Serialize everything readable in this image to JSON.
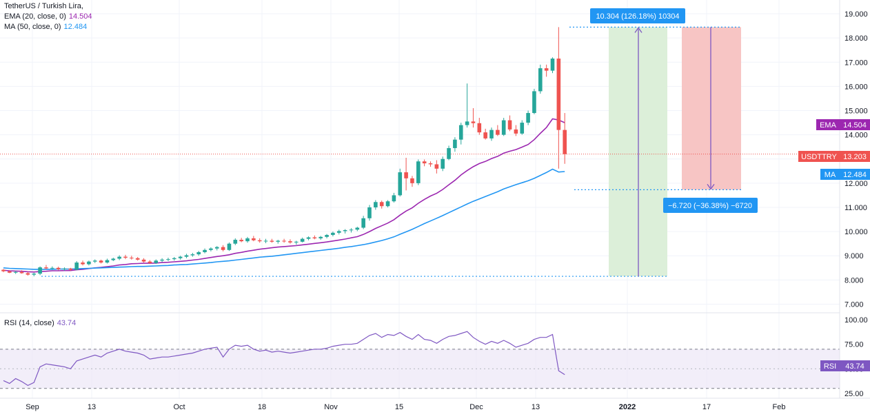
{
  "legend": {
    "title": "TetherUS / Turkish Lira,",
    "ema_label": "EMA (20, close, 0)",
    "ema_value": "14.504",
    "ma_label": "MA (50, close, 0)",
    "ma_value": "12.484",
    "rsi_label": "RSI (14, close)",
    "rsi_value": "43.74"
  },
  "tags": {
    "ema": {
      "label": "EMA",
      "value": "14.504"
    },
    "price": {
      "label": "USDTTRY",
      "value": "13.203"
    },
    "ma": {
      "label": "MA",
      "value": "12.484"
    },
    "rsi": {
      "label": "RSI",
      "value": "43.74"
    }
  },
  "colors": {
    "up": "#26a69a",
    "down": "#ef5350",
    "ema": "#9c27b0",
    "ma": "#2196f3",
    "rsi": "#7e57c2",
    "long_profit_zone": "#dcefd9",
    "short_loss_zone": "#f7c5c4",
    "range_box": "#2196f3"
  },
  "chart_data": [
    {
      "type": "candlestick",
      "title": "TetherUS / Turkish Lira,",
      "ylim": [
        6.7,
        19.4
      ],
      "y_ticks": [
        "7.000",
        "8.000",
        "9.000",
        "10.000",
        "11.000",
        "12.000",
        "13.000",
        "14.000",
        "15.000",
        "16.000",
        "17.000",
        "18.000",
        "19.000"
      ],
      "x_ticks": [
        "Sep",
        "13",
        "Oct",
        "18",
        "Nov",
        "15",
        "Dec",
        "13",
        "2022",
        "17",
        "Feb"
      ],
      "current_price": 13.203,
      "candles": [
        [
          8.42,
          8.45,
          8.32,
          8.36
        ],
        [
          8.36,
          8.4,
          8.28,
          8.3
        ],
        [
          8.3,
          8.38,
          8.25,
          8.33
        ],
        [
          8.33,
          8.4,
          8.26,
          8.28
        ],
        [
          8.28,
          8.33,
          8.18,
          8.22
        ],
        [
          8.22,
          8.3,
          8.15,
          8.26
        ],
        [
          8.26,
          8.56,
          8.2,
          8.52
        ],
        [
          8.52,
          8.62,
          8.44,
          8.48
        ],
        [
          8.48,
          8.56,
          8.42,
          8.5
        ],
        [
          8.5,
          8.55,
          8.4,
          8.44
        ],
        [
          8.44,
          8.52,
          8.38,
          8.47
        ],
        [
          8.47,
          8.5,
          8.38,
          8.42
        ],
        [
          8.42,
          8.78,
          8.4,
          8.72
        ],
        [
          8.72,
          8.8,
          8.6,
          8.65
        ],
        [
          8.65,
          8.8,
          8.6,
          8.76
        ],
        [
          8.76,
          8.85,
          8.7,
          8.8
        ],
        [
          8.8,
          8.84,
          8.68,
          8.72
        ],
        [
          8.72,
          8.88,
          8.68,
          8.82
        ],
        [
          8.82,
          8.92,
          8.78,
          8.88
        ],
        [
          8.88,
          9.02,
          8.82,
          8.96
        ],
        [
          8.96,
          9.04,
          8.86,
          8.92
        ],
        [
          8.92,
          9.0,
          8.84,
          8.9
        ],
        [
          8.9,
          8.95,
          8.8,
          8.84
        ],
        [
          8.84,
          8.9,
          8.72,
          8.76
        ],
        [
          8.76,
          8.82,
          8.66,
          8.7
        ],
        [
          8.7,
          8.85,
          8.66,
          8.8
        ],
        [
          8.8,
          8.9,
          8.74,
          8.84
        ],
        [
          8.84,
          8.92,
          8.78,
          8.86
        ],
        [
          8.86,
          8.95,
          8.8,
          8.9
        ],
        [
          8.9,
          9.0,
          8.84,
          8.96
        ],
        [
          8.96,
          9.08,
          8.9,
          9.02
        ],
        [
          9.02,
          9.12,
          8.96,
          9.06
        ],
        [
          9.06,
          9.2,
          9.0,
          9.15
        ],
        [
          9.15,
          9.3,
          9.1,
          9.24
        ],
        [
          9.24,
          9.35,
          9.18,
          9.3
        ],
        [
          9.3,
          9.4,
          9.22,
          9.36
        ],
        [
          9.36,
          9.44,
          9.18,
          9.24
        ],
        [
          9.24,
          9.55,
          9.2,
          9.5
        ],
        [
          9.5,
          9.72,
          9.44,
          9.66
        ],
        [
          9.66,
          9.74,
          9.56,
          9.6
        ],
        [
          9.6,
          9.78,
          9.54,
          9.72
        ],
        [
          9.72,
          9.82,
          9.6,
          9.64
        ],
        [
          9.64,
          9.72,
          9.54,
          9.6
        ],
        [
          9.6,
          9.7,
          9.52,
          9.62
        ],
        [
          9.62,
          9.7,
          9.54,
          9.58
        ],
        [
          9.58,
          9.66,
          9.5,
          9.62
        ],
        [
          9.62,
          9.7,
          9.54,
          9.6
        ],
        [
          9.6,
          9.68,
          9.5,
          9.55
        ],
        [
          9.55,
          9.62,
          9.46,
          9.58
        ],
        [
          9.58,
          9.75,
          9.55,
          9.7
        ],
        [
          9.7,
          9.8,
          9.64,
          9.76
        ],
        [
          9.76,
          9.84,
          9.68,
          9.72
        ],
        [
          9.72,
          9.82,
          9.66,
          9.78
        ],
        [
          9.78,
          9.9,
          9.72,
          9.86
        ],
        [
          9.86,
          10.0,
          9.8,
          9.95
        ],
        [
          9.95,
          10.08,
          9.88,
          10.02
        ],
        [
          10.02,
          10.1,
          9.92,
          10.06
        ],
        [
          10.06,
          10.14,
          9.96,
          10.08
        ],
        [
          10.08,
          10.2,
          10.02,
          10.16
        ],
        [
          10.16,
          10.65,
          10.1,
          10.55
        ],
        [
          10.55,
          11.1,
          10.45,
          11.0
        ],
        [
          11.0,
          11.3,
          10.9,
          11.22
        ],
        [
          11.22,
          11.28,
          10.95,
          11.05
        ],
        [
          11.05,
          11.3,
          11.0,
          11.25
        ],
        [
          11.25,
          11.6,
          11.2,
          11.5
        ],
        [
          11.5,
          12.6,
          11.45,
          12.45
        ],
        [
          12.45,
          13.05,
          11.7,
          12.2
        ],
        [
          12.2,
          12.3,
          11.85,
          12.0
        ],
        [
          12.0,
          12.98,
          11.92,
          12.9
        ],
        [
          12.9,
          12.98,
          12.7,
          12.82
        ],
        [
          12.82,
          12.9,
          12.68,
          12.78
        ],
        [
          12.78,
          12.95,
          12.4,
          12.6
        ],
        [
          12.6,
          13.1,
          12.5,
          13.0
        ],
        [
          13.0,
          13.55,
          12.95,
          13.45
        ],
        [
          13.45,
          13.9,
          13.3,
          13.8
        ],
        [
          13.8,
          14.5,
          13.6,
          14.4
        ],
        [
          14.4,
          16.12,
          14.3,
          14.55
        ],
        [
          14.55,
          15.1,
          14.3,
          14.48
        ],
        [
          14.48,
          14.7,
          14.0,
          14.1
        ],
        [
          14.1,
          14.25,
          13.8,
          13.85
        ],
        [
          13.85,
          14.3,
          13.75,
          14.2
        ],
        [
          14.2,
          14.4,
          13.95,
          14.0
        ],
        [
          14.0,
          14.7,
          13.95,
          14.6
        ],
        [
          14.6,
          14.8,
          14.15,
          14.22
        ],
        [
          14.22,
          14.4,
          13.95,
          14.05
        ],
        [
          14.05,
          14.6,
          14.0,
          14.5
        ],
        [
          14.5,
          15.0,
          14.4,
          14.9
        ],
        [
          14.9,
          15.9,
          14.85,
          15.8
        ],
        [
          15.8,
          16.9,
          15.7,
          16.75
        ],
        [
          16.75,
          16.9,
          16.4,
          16.65
        ],
        [
          16.65,
          17.2,
          16.55,
          17.15
        ],
        [
          17.15,
          18.45,
          12.6,
          14.2
        ],
        [
          14.2,
          14.9,
          12.8,
          13.2
        ]
      ],
      "series": [
        {
          "name": "EMA (20, close, 0)",
          "color": "#9c27b0",
          "values": [
            8.4,
            8.38,
            8.37,
            8.36,
            8.34,
            8.33,
            8.35,
            8.36,
            8.38,
            8.38,
            8.39,
            8.39,
            8.42,
            8.44,
            8.47,
            8.5,
            8.52,
            8.55,
            8.58,
            8.62,
            8.64,
            8.67,
            8.68,
            8.69,
            8.69,
            8.7,
            8.72,
            8.73,
            8.75,
            8.77,
            8.79,
            8.82,
            8.85,
            8.89,
            8.93,
            8.97,
            9.0,
            9.04,
            9.1,
            9.14,
            9.19,
            9.23,
            9.27,
            9.3,
            9.33,
            9.36,
            9.38,
            9.4,
            9.42,
            9.45,
            9.48,
            9.51,
            9.54,
            9.57,
            9.61,
            9.65,
            9.69,
            9.74,
            9.79,
            9.88,
            10.0,
            10.13,
            10.24,
            10.35,
            10.49,
            10.68,
            10.85,
            10.98,
            11.17,
            11.33,
            11.47,
            11.58,
            11.74,
            11.93,
            12.12,
            12.34,
            12.52,
            12.68,
            12.81,
            12.9,
            13.02,
            13.11,
            13.24,
            13.32,
            13.39,
            13.49,
            13.6,
            13.8,
            14.06,
            14.3,
            14.66,
            14.61,
            14.5
          ]
        },
        {
          "name": "MA (50, close, 0)",
          "color": "#2196f3",
          "values": [
            8.5,
            8.48,
            8.47,
            8.46,
            8.45,
            8.44,
            8.44,
            8.44,
            8.44,
            8.45,
            8.45,
            8.45,
            8.46,
            8.47,
            8.48,
            8.49,
            8.5,
            8.51,
            8.52,
            8.53,
            8.54,
            8.55,
            8.56,
            8.56,
            8.57,
            8.58,
            8.59,
            8.6,
            8.62,
            8.63,
            8.64,
            8.66,
            8.68,
            8.7,
            8.72,
            8.75,
            8.77,
            8.79,
            8.82,
            8.85,
            8.88,
            8.91,
            8.94,
            8.96,
            8.98,
            9.01,
            9.04,
            9.07,
            9.1,
            9.13,
            9.16,
            9.19,
            9.22,
            9.25,
            9.28,
            9.31,
            9.35,
            9.38,
            9.42,
            9.46,
            9.51,
            9.57,
            9.63,
            9.7,
            9.78,
            9.89,
            9.99,
            10.09,
            10.21,
            10.33,
            10.44,
            10.55,
            10.66,
            10.78,
            10.9,
            11.02,
            11.14,
            11.25,
            11.35,
            11.45,
            11.55,
            11.65,
            11.76,
            11.85,
            11.94,
            12.02,
            12.1,
            12.2,
            12.32,
            12.44,
            12.58,
            12.46,
            12.48
          ]
        }
      ],
      "projection": {
        "long": {
          "entry": 8.15,
          "target": 18.45,
          "label": "10.304 (126.18%) 10304"
        },
        "short": {
          "entry": 18.45,
          "target": 11.73,
          "label": "−6.720 (−36.38%) −6720"
        }
      }
    },
    {
      "type": "line",
      "title": "RSI (14, close)",
      "ylim": [
        20,
        105
      ],
      "y_ticks": [
        "25.00",
        "50.00",
        "75.00",
        "100.00"
      ],
      "band": [
        30,
        70
      ],
      "midline": 50,
      "series": [
        {
          "name": "RSI (14, close)",
          "color": "#7e57c2",
          "values": [
            38,
            35,
            40,
            37,
            33,
            36,
            52,
            55,
            54,
            53,
            52,
            50,
            58,
            60,
            62,
            64,
            62,
            66,
            68,
            70,
            68,
            67,
            66,
            64,
            60,
            61,
            62,
            62,
            63,
            64,
            65,
            66,
            68,
            70,
            71,
            72,
            62,
            70,
            74,
            73,
            74,
            70,
            68,
            69,
            67,
            68,
            67,
            66,
            67,
            68,
            69,
            70,
            70,
            71,
            73,
            74,
            75,
            75,
            76,
            80,
            84,
            86,
            82,
            85,
            84,
            87,
            83,
            80,
            85,
            80,
            79,
            76,
            80,
            83,
            84,
            86,
            88,
            82,
            78,
            75,
            78,
            76,
            79,
            76,
            72,
            74,
            76,
            80,
            82,
            82,
            85,
            48,
            44
          ]
        }
      ]
    }
  ]
}
